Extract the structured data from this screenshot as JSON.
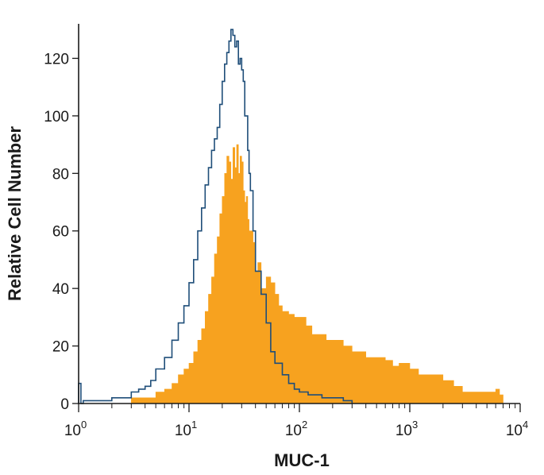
{
  "chart_data": {
    "type": "area",
    "xlabel": "MUC-1",
    "ylabel": "Relative Cell Number",
    "x_scale": "log",
    "xlim": [
      1,
      10000
    ],
    "ylim": [
      0,
      132
    ],
    "x_ticks": [
      {
        "value": 1,
        "base": "10",
        "exp": "0"
      },
      {
        "value": 10,
        "base": "10",
        "exp": "1"
      },
      {
        "value": 100,
        "base": "10",
        "exp": "2"
      },
      {
        "value": 1000,
        "base": "10",
        "exp": "3"
      },
      {
        "value": 10000,
        "base": "10",
        "exp": "4"
      }
    ],
    "y_ticks": [
      0,
      20,
      40,
      60,
      80,
      100,
      120
    ],
    "grid": false,
    "series": [
      {
        "kind": "filled",
        "color": "#f7a21f",
        "x": [
          3.0,
          4.0,
          5.0,
          6.0,
          7.0,
          8.0,
          9.0,
          10.0,
          11.0,
          12.0,
          13.0,
          14.0,
          15.0,
          16.0,
          17.0,
          18.0,
          19.0,
          20.0,
          21.0,
          22.0,
          23.0,
          24.0,
          25.0,
          26.0,
          27.0,
          28.0,
          29.0,
          30.0,
          31.0,
          32.0,
          33.0,
          34.0,
          35.0,
          36.0,
          38.0,
          40.0,
          42.0,
          45.0,
          50.0,
          55.0,
          60.0,
          65.0,
          70.0,
          80.0,
          90.0,
          100.0,
          115.0,
          130.0,
          150.0,
          175.0,
          200.0,
          250.0,
          300.0,
          350.0,
          400.0,
          500.0,
          600.0,
          700.0,
          800.0,
          1000.0,
          1200.0,
          1500.0,
          2000.0,
          2500.0,
          3000.0,
          3500.0,
          4000.0,
          5000.0,
          6000.0,
          6500.0,
          7000.0
        ],
        "y": [
          2,
          2,
          4,
          5,
          7,
          10,
          12,
          14,
          18,
          22,
          26,
          32,
          38,
          44,
          52,
          58,
          66,
          72,
          80,
          86,
          84,
          78,
          89,
          82,
          90,
          80,
          86,
          84,
          74,
          70,
          72,
          64,
          60,
          60,
          56,
          46,
          49,
          40,
          44,
          42,
          38,
          34,
          32,
          31,
          30,
          30,
          27,
          24,
          24,
          22,
          22,
          20,
          18,
          18,
          16,
          16,
          15,
          13,
          14,
          12,
          10,
          10,
          8,
          6,
          4,
          4,
          4,
          4,
          5,
          3,
          0
        ]
      },
      {
        "kind": "outline",
        "color": "#1f4e79",
        "x": [
          1.0,
          1.05,
          1.1,
          1.5,
          2.0,
          2.5,
          3.0,
          3.5,
          4.0,
          4.5,
          5.0,
          6.0,
          7.0,
          8.0,
          9.0,
          10.0,
          11.0,
          12.0,
          13.0,
          14.0,
          15.0,
          16.0,
          17.0,
          18.0,
          19.0,
          20.0,
          21.0,
          22.0,
          23.0,
          24.0,
          25.0,
          26.0,
          27.0,
          28.0,
          29.0,
          30.0,
          31.0,
          32.0,
          33.0,
          34.0,
          35.0,
          36.0,
          38.0,
          40.0,
          45.0,
          50.0,
          55.0,
          60.0,
          70.0,
          80.0,
          90.0,
          100.0,
          120.0,
          140.0,
          160.0,
          200.0,
          250.0,
          300.0
        ],
        "y": [
          7,
          0,
          1,
          1,
          2,
          2,
          4,
          5,
          6,
          8,
          12,
          16,
          22,
          28,
          34,
          42,
          50,
          60,
          68,
          76,
          82,
          88,
          92,
          96,
          104,
          112,
          118,
          122,
          126,
          130,
          128,
          124,
          126,
          118,
          120,
          116,
          112,
          100,
          100,
          88,
          80,
          74,
          60,
          46,
          38,
          28,
          18,
          14,
          10,
          7,
          5,
          4,
          3,
          3,
          2,
          2,
          1,
          0
        ]
      }
    ]
  }
}
